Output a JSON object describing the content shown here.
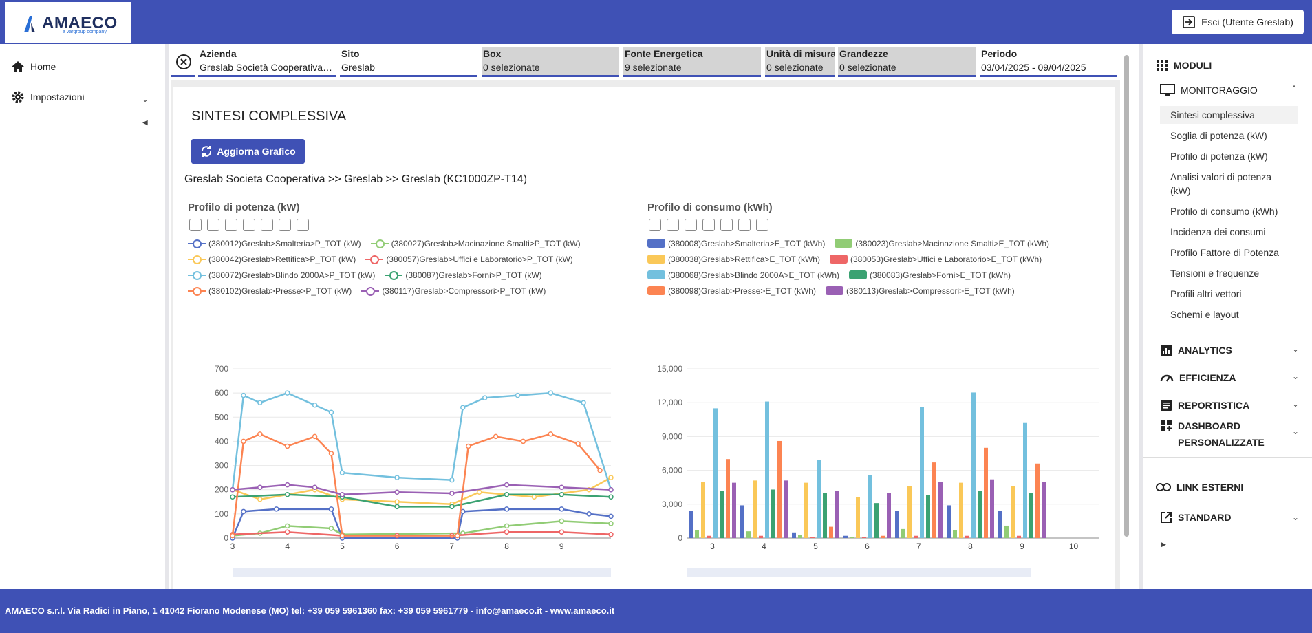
{
  "app": {
    "logo_text": "AMAECO",
    "logo_sub": "a vargroup company",
    "exit_label": "Esci (Utente Greslab)"
  },
  "left_nav": {
    "home": "Home",
    "settings": "Impostazioni"
  },
  "filters": [
    {
      "key": "Azienda",
      "value": "Greslab Società Cooperativa - ..."
    },
    {
      "key": "Sito",
      "value": "Greslab"
    },
    {
      "key": "Box",
      "value": "0 selezionate"
    },
    {
      "key": "Fonte Energetica",
      "value": "9 selezionate"
    },
    {
      "key": "Unità di misura",
      "value": "0 selezionate"
    },
    {
      "key": "Grandezze",
      "value": "0 selezionate"
    },
    {
      "key": "Periodo",
      "value": "03/04/2025 - 09/04/2025"
    }
  ],
  "main": {
    "title": "SINTESI COMPLESSIVA",
    "refresh_label": "Aggiorna Grafico",
    "breadcrumb": "Greslab Societa Cooperativa >> Greslab >> Greslab (KC1000ZP-T14)"
  },
  "colors": {
    "primary": "#3f51b5",
    "s1": "#5470c6",
    "s2": "#91cc75",
    "s3": "#fac858",
    "s4": "#ee6666",
    "s5": "#73c0de",
    "s6": "#3ba272",
    "s7": "#fc8452",
    "s8": "#9a60b4"
  },
  "chart_data": [
    {
      "type": "line",
      "title": "Profilo di potenza (kW)",
      "ylim": [
        0,
        700
      ],
      "yticks": [
        "0",
        "100",
        "200",
        "300",
        "400",
        "500",
        "600",
        "700"
      ],
      "xticks": [
        "3",
        "4",
        "5",
        "6",
        "7",
        "8",
        "9"
      ],
      "series": [
        {
          "name": "(380012)Greslab>Smalteria>P_TOT (kW)",
          "x": [
            3,
            3.2,
            3.8,
            4.8,
            5.0,
            7.1,
            7.2,
            8.0,
            9.0,
            9.5,
            9.9
          ],
          "values": [
            0,
            110,
            120,
            120,
            0,
            0,
            110,
            120,
            120,
            100,
            90
          ]
        },
        {
          "name": "(380027)Greslab>Macinazione Smalti>P_TOT (kW)",
          "x": [
            3,
            3.5,
            4.0,
            4.8,
            5.0,
            7.2,
            8.0,
            9.0,
            9.9
          ],
          "values": [
            10,
            20,
            50,
            40,
            15,
            20,
            50,
            70,
            60
          ]
        },
        {
          "name": "(380042)Greslab>Rettifica>P_TOT (kW)",
          "x": [
            3,
            3.5,
            4.5,
            5.0,
            6.0,
            7.0,
            7.5,
            8.5,
            9.5,
            9.9
          ],
          "values": [
            200,
            160,
            200,
            160,
            150,
            140,
            190,
            170,
            200,
            250
          ]
        },
        {
          "name": "(380057)Greslab>Uffici e Laboratorio>P_TOT (kW)",
          "x": [
            3,
            4,
            5,
            6,
            7,
            8,
            9,
            9.9
          ],
          "values": [
            15,
            25,
            10,
            10,
            10,
            25,
            25,
            15
          ]
        },
        {
          "name": "(380072)Greslab>Blindo 2000A>P_TOT (kW)",
          "x": [
            3,
            3.2,
            3.5,
            4.0,
            4.5,
            4.8,
            5.0,
            6.0,
            7.0,
            7.2,
            7.6,
            8.2,
            8.8,
            9.4,
            9.9
          ],
          "values": [
            200,
            590,
            560,
            600,
            550,
            520,
            270,
            250,
            240,
            540,
            580,
            590,
            600,
            560,
            200
          ]
        },
        {
          "name": "(380087)Greslab>Forni>P_TOT (kW)",
          "x": [
            3,
            4,
            5,
            6,
            7,
            8,
            9,
            9.9
          ],
          "values": [
            170,
            180,
            170,
            130,
            130,
            180,
            180,
            170
          ]
        },
        {
          "name": "(380102)Greslab>Presse>P_TOT (kW)",
          "x": [
            3,
            3.2,
            3.5,
            4.0,
            4.5,
            4.8,
            5.0,
            7.1,
            7.3,
            7.8,
            8.3,
            8.8,
            9.3,
            9.7
          ],
          "values": [
            10,
            400,
            430,
            380,
            420,
            350,
            10,
            10,
            380,
            420,
            400,
            430,
            390,
            280
          ]
        },
        {
          "name": "(380117)Greslab>Compressori>P_TOT (kW)",
          "x": [
            3,
            3.5,
            4.0,
            4.5,
            5.0,
            6.0,
            7.0,
            8.0,
            9.0,
            9.9
          ],
          "values": [
            200,
            210,
            220,
            210,
            180,
            190,
            185,
            220,
            210,
            200
          ]
        }
      ]
    },
    {
      "type": "bar",
      "title": "Profilo di consumo (kWh)",
      "ylim": [
        0,
        15000
      ],
      "yticks": [
        "0",
        "3,000",
        "6,000",
        "9,000",
        "12,000",
        "15,000"
      ],
      "categories": [
        "3",
        "4",
        "5",
        "6",
        "7",
        "8",
        "9",
        "10"
      ],
      "series": [
        {
          "name": "(380008)Greslab>Smalteria>E_TOT (kWh)",
          "values": [
            2400,
            2900,
            500,
            200,
            2400,
            2900,
            2400,
            0
          ]
        },
        {
          "name": "(380023)Greslab>Macinazione Smalti>E_TOT (kWh)",
          "values": [
            700,
            600,
            300,
            100,
            800,
            700,
            1100,
            0
          ]
        },
        {
          "name": "(380038)Greslab>Rettifica>E_TOT (kWh)",
          "values": [
            5000,
            5100,
            4900,
            3600,
            4600,
            4900,
            4600,
            0
          ]
        },
        {
          "name": "(380053)Greslab>Uffici e Laboratorio>E_TOT (kWh)",
          "values": [
            200,
            200,
            100,
            100,
            200,
            200,
            200,
            0
          ]
        },
        {
          "name": "(380068)Greslab>Blindo 2000A>E_TOT (kWh)",
          "values": [
            11500,
            12100,
            6900,
            5600,
            11600,
            12900,
            10200,
            0
          ]
        },
        {
          "name": "(380083)Greslab>Forni>E_TOT (kWh)",
          "values": [
            4200,
            4300,
            4000,
            3100,
            3800,
            4200,
            4000,
            0
          ]
        },
        {
          "name": "(380098)Greslab>Presse>E_TOT (kWh)",
          "values": [
            7000,
            8600,
            1000,
            200,
            6700,
            8000,
            6600,
            0
          ]
        },
        {
          "name": "(380113)Greslab>Compressori>E_TOT (kWh)",
          "values": [
            4900,
            5100,
            4200,
            4000,
            5000,
            5200,
            5000,
            0
          ]
        }
      ]
    }
  ],
  "right_nav": {
    "moduli": "MODULI",
    "monitoraggio": "MONITORAGGIO",
    "subitems": [
      "Sintesi complessiva",
      "Soglia di potenza (kW)",
      "Profilo di potenza (kW)",
      "Analisi valori di potenza",
      "(kW)",
      "Profilo di consumo (kWh)",
      "Incidenza dei consumi",
      "Profilo Fattore di Potenza",
      "Tensioni e frequenze",
      "Profili altri vettori",
      "Schemi e layout"
    ],
    "analytics": "ANALYTICS",
    "efficienza": "EFFICIENZA",
    "reportistica": "REPORTISTICA",
    "dashboard_1": "DASHBOARD",
    "dashboard_2": "PERSONALIZZATE",
    "link_esterni": "LINK ESTERNI",
    "standard": "STANDARD"
  },
  "footer": "AMAECO s.r.l. Via Radici in Piano, 1 41042 Fiorano Modenese (MO) tel: +39 059 5961360 fax: +39 059 5961779 - info@amaeco.it - www.amaeco.it"
}
